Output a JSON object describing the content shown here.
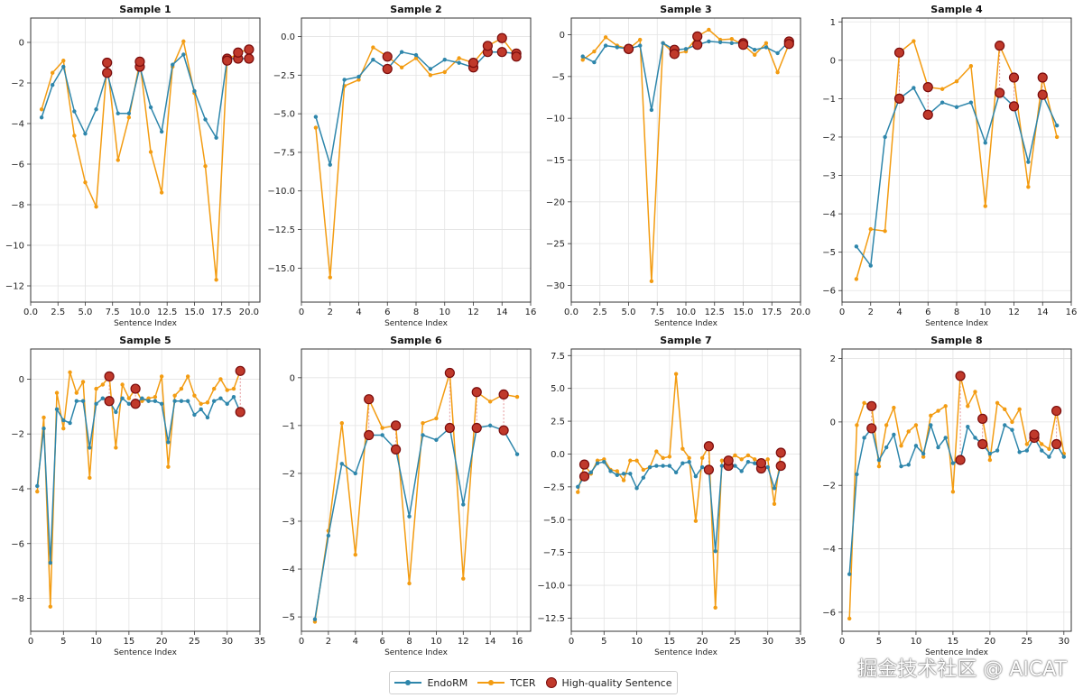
{
  "colors": {
    "endorm": "#2e86ab",
    "tcer": "#f39c12",
    "hq_fill": "#c0392b",
    "hq_edge": "#7a0c0c",
    "connector": "#e5989b"
  },
  "legend": {
    "endorm": "EndoRM",
    "tcer": "TCER",
    "hq": "High-quality Sentence"
  },
  "watermark": "掘金技术社区 @ AICAT",
  "chart_data": [
    {
      "type": "line",
      "title": "Sample 1",
      "xlabel": "Sentence Index",
      "ylabel": "",
      "xlim": [
        0,
        21
      ],
      "ylim": [
        -12.8,
        1.2
      ],
      "xticks": [
        0,
        2.5,
        5,
        7.5,
        10,
        12.5,
        15,
        17.5,
        20
      ],
      "xtick_labels": [
        "0.0",
        "2.5",
        "5.0",
        "7.5",
        "10.0",
        "12.5",
        "15.0",
        "17.5",
        "20.0"
      ],
      "yticks": [
        0,
        -2,
        -4,
        -6,
        -8,
        -10,
        -12
      ],
      "ytick_labels": [
        "0",
        "−2",
        "−4",
        "−6",
        "−8",
        "−10",
        "−12"
      ],
      "x": [
        1,
        2,
        3,
        4,
        5,
        6,
        7,
        8,
        9,
        10,
        11,
        12,
        13,
        14,
        15,
        16,
        17,
        18,
        19,
        20
      ],
      "series": [
        {
          "name": "EndoRM",
          "values": [
            -3.7,
            -2.1,
            -1.2,
            -3.4,
            -4.5,
            -3.3,
            -1.5,
            -3.5,
            -3.5,
            -1.2,
            -3.2,
            -4.4,
            -1.1,
            -0.6,
            -2.4,
            -3.8,
            -4.7,
            -0.8,
            -0.8,
            -0.8
          ]
        },
        {
          "name": "TCER",
          "values": [
            -3.3,
            -1.5,
            -0.9,
            -4.6,
            -6.9,
            -8.1,
            -1.0,
            -5.8,
            -3.7,
            -0.95,
            -5.4,
            -7.4,
            -1.2,
            0.05,
            -2.5,
            -6.1,
            -11.7,
            -0.9,
            -0.5,
            -0.35
          ]
        }
      ],
      "high_quality": [
        7,
        10,
        18,
        19,
        20
      ]
    },
    {
      "type": "line",
      "title": "Sample 2",
      "xlabel": "Sentence Index",
      "ylabel": "",
      "xlim": [
        0,
        16
      ],
      "ylim": [
        -17.2,
        1.2
      ],
      "xticks": [
        0,
        2,
        4,
        6,
        8,
        10,
        12,
        14,
        16
      ],
      "xtick_labels": [
        "0",
        "2",
        "4",
        "6",
        "8",
        "10",
        "12",
        "14",
        "16"
      ],
      "yticks": [
        0,
        -2.5,
        -5,
        -7.5,
        -10,
        -12.5,
        -15
      ],
      "ytick_labels": [
        "0.0",
        "−2.5",
        "−5.0",
        "−7.5",
        "−10.0",
        "−12.5",
        "−15.0"
      ],
      "x": [
        1,
        2,
        3,
        4,
        5,
        6,
        7,
        8,
        9,
        10,
        11,
        12,
        13,
        14,
        15
      ],
      "series": [
        {
          "name": "EndoRM",
          "values": [
            -5.2,
            -8.3,
            -2.8,
            -2.6,
            -1.5,
            -2.1,
            -1.0,
            -1.2,
            -2.1,
            -1.5,
            -1.7,
            -2.0,
            -1.0,
            -1.0,
            -1.1
          ]
        },
        {
          "name": "TCER",
          "values": [
            -5.9,
            -15.6,
            -3.2,
            -2.8,
            -0.7,
            -1.3,
            -2.0,
            -1.4,
            -2.5,
            -2.3,
            -1.4,
            -1.7,
            -0.6,
            -0.1,
            -1.3
          ]
        }
      ],
      "high_quality": [
        6,
        12,
        13,
        14,
        15
      ]
    },
    {
      "type": "line",
      "title": "Sample 3",
      "xlabel": "Sentence Index",
      "ylabel": "",
      "xlim": [
        0,
        20
      ],
      "ylim": [
        -32,
        2
      ],
      "xticks": [
        0,
        2.5,
        5,
        7.5,
        10,
        12.5,
        15,
        17.5,
        20
      ],
      "xtick_labels": [
        "0.0",
        "2.5",
        "5.0",
        "7.5",
        "10.0",
        "12.5",
        "15.0",
        "17.5",
        "20.0"
      ],
      "yticks": [
        0,
        -5,
        -10,
        -15,
        -20,
        -25,
        -30
      ],
      "ytick_labels": [
        "0",
        "−5",
        "−10",
        "−15",
        "−20",
        "−25",
        "−30"
      ],
      "x": [
        1,
        2,
        3,
        4,
        5,
        6,
        7,
        8,
        9,
        10,
        11,
        12,
        13,
        14,
        15,
        16,
        17,
        18,
        19
      ],
      "series": [
        {
          "name": "EndoRM",
          "values": [
            -2.6,
            -3.3,
            -1.3,
            -1.5,
            -1.7,
            -1.3,
            -9.0,
            -1.0,
            -1.8,
            -1.7,
            -1.2,
            -0.8,
            -0.9,
            -1.0,
            -1.0,
            -1.8,
            -1.5,
            -2.2,
            -0.8
          ]
        },
        {
          "name": "TCER",
          "values": [
            -3.0,
            -2.0,
            -0.3,
            -1.3,
            -1.7,
            -0.6,
            -29.5,
            -1.0,
            -2.3,
            -2.0,
            -0.2,
            0.6,
            -0.6,
            -0.5,
            -1.2,
            -2.4,
            -1.0,
            -4.5,
            -1.1
          ]
        }
      ],
      "high_quality": [
        5,
        9,
        11,
        15,
        19
      ]
    },
    {
      "type": "line",
      "title": "Sample 4",
      "xlabel": "Sentence Index",
      "ylabel": "",
      "xlim": [
        0,
        16
      ],
      "ylim": [
        -6.3,
        1.1
      ],
      "xticks": [
        0,
        2,
        4,
        6,
        8,
        10,
        12,
        14,
        16
      ],
      "xtick_labels": [
        "0",
        "2",
        "4",
        "6",
        "8",
        "10",
        "12",
        "14",
        "16"
      ],
      "yticks": [
        1,
        0,
        -1,
        -2,
        -3,
        -4,
        -5,
        -6
      ],
      "ytick_labels": [
        "1",
        "0",
        "−1",
        "−2",
        "−3",
        "−4",
        "−5",
        "−6"
      ],
      "x": [
        1,
        2,
        3,
        4,
        5,
        6,
        7,
        8,
        9,
        10,
        11,
        12,
        13,
        14,
        15
      ],
      "series": [
        {
          "name": "EndoRM",
          "values": [
            -4.85,
            -5.35,
            -2.0,
            -1.0,
            -0.72,
            -1.42,
            -1.1,
            -1.22,
            -1.1,
            -2.15,
            -0.85,
            -1.2,
            -2.65,
            -0.9,
            -1.7
          ]
        },
        {
          "name": "TCER",
          "values": [
            -5.7,
            -4.4,
            -4.45,
            0.2,
            0.5,
            -0.7,
            -0.75,
            -0.55,
            -0.15,
            -3.8,
            0.38,
            -0.45,
            -3.3,
            -0.45,
            -2.0
          ]
        }
      ],
      "high_quality": [
        4,
        6,
        11,
        12,
        14
      ]
    },
    {
      "type": "line",
      "title": "Sample 5",
      "xlabel": "Sentence Index",
      "ylabel": "",
      "xlim": [
        0,
        35
      ],
      "ylim": [
        -9.2,
        1.1
      ],
      "xticks": [
        0,
        5,
        10,
        15,
        20,
        25,
        30,
        35
      ],
      "xtick_labels": [
        "0",
        "5",
        "10",
        "15",
        "20",
        "25",
        "30",
        "35"
      ],
      "yticks": [
        0,
        -2,
        -4,
        -6,
        -8
      ],
      "ytick_labels": [
        "0",
        "−2",
        "−4",
        "−6",
        "−8"
      ],
      "x": [
        1,
        2,
        3,
        4,
        5,
        6,
        7,
        8,
        9,
        10,
        11,
        12,
        13,
        14,
        15,
        16,
        17,
        18,
        19,
        20,
        21,
        22,
        23,
        24,
        25,
        26,
        27,
        28,
        29,
        30,
        31,
        32
      ],
      "series": [
        {
          "name": "EndoRM",
          "values": [
            -3.9,
            -1.8,
            -6.7,
            -1.1,
            -1.5,
            -1.6,
            -0.8,
            -0.8,
            -2.5,
            -0.9,
            -0.7,
            -0.8,
            -1.2,
            -0.7,
            -0.9,
            -0.9,
            -0.7,
            -0.8,
            -0.8,
            -0.9,
            -2.3,
            -0.8,
            -0.8,
            -0.8,
            -1.3,
            -1.1,
            -1.4,
            -0.8,
            -0.7,
            -0.9,
            -0.65,
            -1.2
          ]
        },
        {
          "name": "TCER",
          "values": [
            -4.1,
            -1.4,
            -8.3,
            -0.5,
            -1.8,
            0.25,
            -0.5,
            -0.1,
            -3.6,
            -0.35,
            -0.2,
            0.1,
            -2.5,
            -0.2,
            -0.7,
            -0.35,
            -0.8,
            -0.7,
            -0.65,
            0.1,
            -3.2,
            -0.6,
            -0.35,
            0.1,
            -0.6,
            -0.9,
            -0.85,
            -0.35,
            0.0,
            -0.4,
            -0.35,
            0.3
          ]
        }
      ],
      "high_quality": [
        12,
        16,
        32
      ]
    },
    {
      "type": "line",
      "title": "Sample 6",
      "xlabel": "Sentence Index",
      "ylabel": "",
      "xlim": [
        0,
        17
      ],
      "ylim": [
        -5.3,
        0.6
      ],
      "xticks": [
        0,
        2,
        4,
        6,
        8,
        10,
        12,
        14,
        16
      ],
      "xtick_labels": [
        "0",
        "2",
        "4",
        "6",
        "8",
        "10",
        "12",
        "14",
        "16"
      ],
      "yticks": [
        0,
        -1,
        -2,
        -3,
        -4,
        -5
      ],
      "ytick_labels": [
        "0",
        "−1",
        "−2",
        "−3",
        "−4",
        "−5"
      ],
      "x": [
        1,
        2,
        3,
        4,
        5,
        6,
        7,
        8,
        9,
        10,
        11,
        12,
        13,
        14,
        15,
        16
      ],
      "series": [
        {
          "name": "EndoRM",
          "values": [
            -5.05,
            -3.3,
            -1.8,
            -2.0,
            -1.2,
            -1.2,
            -1.5,
            -2.9,
            -1.2,
            -1.3,
            -1.05,
            -2.65,
            -1.05,
            -1.0,
            -1.1,
            -1.6
          ]
        },
        {
          "name": "TCER",
          "values": [
            -5.1,
            -3.2,
            -0.95,
            -3.7,
            -0.45,
            -1.05,
            -1.0,
            -4.3,
            -0.95,
            -0.85,
            0.1,
            -4.2,
            -0.3,
            -0.5,
            -0.35,
            -0.4
          ]
        }
      ],
      "high_quality": [
        5,
        7,
        11,
        13,
        15
      ]
    },
    {
      "type": "line",
      "title": "Sample 7",
      "xlabel": "Sentence Index",
      "ylabel": "",
      "xlim": [
        0,
        35
      ],
      "ylim": [
        -13.5,
        8
      ],
      "xticks": [
        0,
        5,
        10,
        15,
        20,
        25,
        30,
        35
      ],
      "xtick_labels": [
        "0",
        "5",
        "10",
        "15",
        "20",
        "25",
        "30",
        "35"
      ],
      "yticks": [
        7.5,
        5,
        2.5,
        0,
        -2.5,
        -5,
        -7.5,
        -10,
        -12.5
      ],
      "ytick_labels": [
        "7.5",
        "5.0",
        "2.5",
        "0.0",
        "−2.5",
        "−5.0",
        "−7.5",
        "−10.0",
        "−12.5"
      ],
      "x": [
        1,
        2,
        3,
        4,
        5,
        6,
        7,
        8,
        9,
        10,
        11,
        12,
        13,
        14,
        15,
        16,
        17,
        18,
        19,
        20,
        21,
        22,
        23,
        24,
        25,
        26,
        27,
        28,
        29,
        30,
        31,
        32
      ],
      "series": [
        {
          "name": "EndoRM",
          "values": [
            -2.5,
            -1.7,
            -1.4,
            -0.7,
            -0.6,
            -1.3,
            -1.6,
            -1.5,
            -1.5,
            -2.6,
            -1.8,
            -1.0,
            -0.9,
            -0.9,
            -0.9,
            -1.4,
            -0.7,
            -0.6,
            -1.7,
            -1.0,
            -1.2,
            -7.4,
            -0.9,
            -0.9,
            -0.9,
            -1.3,
            -0.6,
            -0.7,
            -1.1,
            -1.0,
            -2.6,
            -0.9
          ]
        },
        {
          "name": "TCER",
          "values": [
            -2.9,
            -0.8,
            -1.5,
            -0.5,
            -0.4,
            -1.2,
            -1.3,
            -2.0,
            -0.5,
            -0.5,
            -1.2,
            -1.0,
            0.2,
            -0.3,
            -0.2,
            6.1,
            0.4,
            -0.3,
            -5.1,
            -0.3,
            0.6,
            -11.7,
            -0.5,
            -0.5,
            -0.1,
            -0.4,
            -0.1,
            -0.4,
            -0.7,
            -0.4,
            -3.8,
            0.1
          ]
        }
      ],
      "high_quality": [
        2,
        21,
        24,
        29,
        32
      ]
    },
    {
      "type": "line",
      "title": "Sample 8",
      "xlabel": "Sentence Index",
      "ylabel": "",
      "xlim": [
        0,
        31
      ],
      "ylim": [
        -6.6,
        2.3
      ],
      "xticks": [
        0,
        5,
        10,
        15,
        20,
        25,
        30
      ],
      "xtick_labels": [
        "0",
        "5",
        "10",
        "15",
        "20",
        "25",
        "30"
      ],
      "yticks": [
        2,
        0,
        -2,
        -4,
        -6
      ],
      "ytick_labels": [
        "2",
        "0",
        "−2",
        "−4",
        "−6"
      ],
      "x": [
        1,
        2,
        3,
        4,
        5,
        6,
        7,
        8,
        9,
        10,
        11,
        12,
        13,
        14,
        15,
        16,
        17,
        18,
        19,
        20,
        21,
        22,
        23,
        24,
        25,
        26,
        27,
        28,
        29,
        30
      ],
      "series": [
        {
          "name": "EndoRM",
          "values": [
            -4.8,
            -1.65,
            -0.5,
            -0.2,
            -1.2,
            -0.8,
            -0.4,
            -1.4,
            -1.35,
            -0.75,
            -1.0,
            -0.1,
            -0.8,
            -0.5,
            -1.3,
            -1.2,
            -0.15,
            -0.5,
            -0.7,
            -1.0,
            -0.9,
            -0.1,
            -0.25,
            -0.95,
            -0.9,
            -0.5,
            -0.9,
            -1.1,
            -0.7,
            -1.1
          ]
        },
        {
          "name": "TCER",
          "values": [
            -6.2,
            -0.1,
            0.6,
            0.5,
            -1.4,
            -0.1,
            0.45,
            -0.75,
            -0.3,
            -0.1,
            -1.1,
            0.2,
            0.35,
            0.5,
            -2.2,
            1.45,
            0.5,
            0.95,
            0.1,
            -1.2,
            0.6,
            0.4,
            0.0,
            0.4,
            -0.7,
            -0.4,
            -0.7,
            -0.85,
            0.35,
            -1.0
          ]
        }
      ],
      "high_quality": [
        4,
        16,
        19,
        26,
        29
      ]
    }
  ]
}
